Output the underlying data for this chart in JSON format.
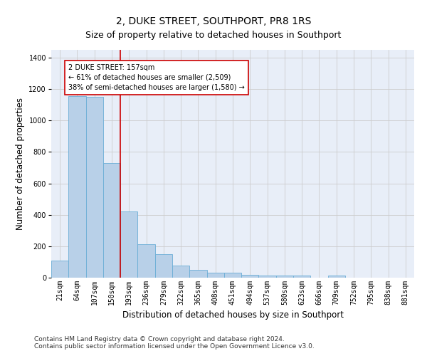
{
  "title": "2, DUKE STREET, SOUTHPORT, PR8 1RS",
  "subtitle": "Size of property relative to detached houses in Southport",
  "xlabel": "Distribution of detached houses by size in Southport",
  "ylabel": "Number of detached properties",
  "categories": [
    "21sqm",
    "64sqm",
    "107sqm",
    "150sqm",
    "193sqm",
    "236sqm",
    "279sqm",
    "322sqm",
    "365sqm",
    "408sqm",
    "451sqm",
    "494sqm",
    "537sqm",
    "580sqm",
    "623sqm",
    "666sqm",
    "709sqm",
    "752sqm",
    "795sqm",
    "838sqm",
    "881sqm"
  ],
  "values": [
    110,
    1155,
    1150,
    730,
    420,
    215,
    150,
    75,
    50,
    32,
    30,
    20,
    15,
    15,
    14,
    0,
    14,
    0,
    0,
    0,
    0
  ],
  "bar_color": "#b8d0e8",
  "bar_edge_color": "#6baed6",
  "vline_color": "#cc0000",
  "annotation_text": "2 DUKE STREET: 157sqm\n← 61% of detached houses are smaller (2,509)\n38% of semi-detached houses are larger (1,580) →",
  "annotation_box_color": "white",
  "annotation_box_edge_color": "#cc0000",
  "ylim": [
    0,
    1450
  ],
  "yticks": [
    0,
    200,
    400,
    600,
    800,
    1000,
    1200,
    1400
  ],
  "grid_color": "#cccccc",
  "bg_color": "#e8eef8",
  "footnote1": "Contains HM Land Registry data © Crown copyright and database right 2024.",
  "footnote2": "Contains public sector information licensed under the Open Government Licence v3.0.",
  "title_fontsize": 10,
  "subtitle_fontsize": 9,
  "xlabel_fontsize": 8.5,
  "ylabel_fontsize": 8.5,
  "tick_fontsize": 7,
  "footnote_fontsize": 6.5,
  "vline_index": 3.5
}
